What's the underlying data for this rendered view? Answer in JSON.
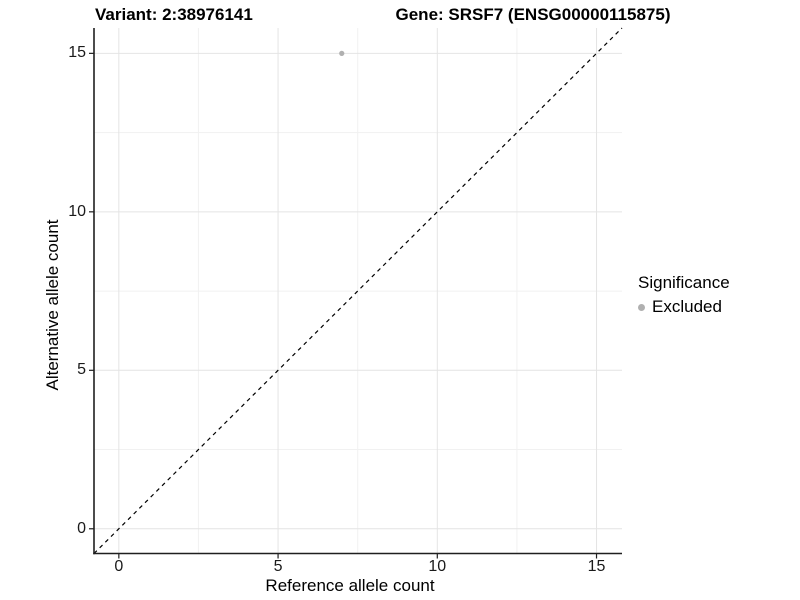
{
  "header": {
    "variant_title": "Variant: 2:38976141",
    "gene_title": "Gene: SRSF7 (ENSG00000115875)"
  },
  "axes": {
    "x_label": "Reference allele count",
    "y_label": "Alternative allele count"
  },
  "legend": {
    "title": "Significance",
    "items": [
      {
        "label": "Excluded",
        "color": "#b0b0b0"
      }
    ]
  },
  "chart_data": {
    "type": "scatter",
    "title": "Variant: 2:38976141   Gene: SRSF7 (ENSG00000115875)",
    "xlabel": "Reference allele count",
    "ylabel": "Alternative allele count",
    "xlim": [
      -0.78,
      15.8
    ],
    "ylim": [
      -0.78,
      15.8
    ],
    "x_major_ticks": [
      0,
      5,
      10,
      15
    ],
    "x_minor_ticks": [
      2.5,
      7.5,
      12.5
    ],
    "y_major_ticks": [
      0,
      5,
      10,
      15
    ],
    "y_minor_ticks": [
      2.5,
      7.5,
      12.5
    ],
    "grid": true,
    "legend_position": "right",
    "series": [
      {
        "name": "Excluded",
        "color": "#b0b0b0",
        "point_radius": 2.6,
        "points": [
          {
            "x": 7,
            "y": 15
          }
        ]
      }
    ],
    "reference_line": {
      "type": "identity",
      "slope": 1,
      "intercept": 0,
      "style": "dashed",
      "color": "#000000"
    },
    "colors": {
      "grid_major": "#e4e4e4",
      "grid_minor": "#f1f1f1",
      "axis": "#1f1f1f",
      "text": "#000000"
    }
  }
}
